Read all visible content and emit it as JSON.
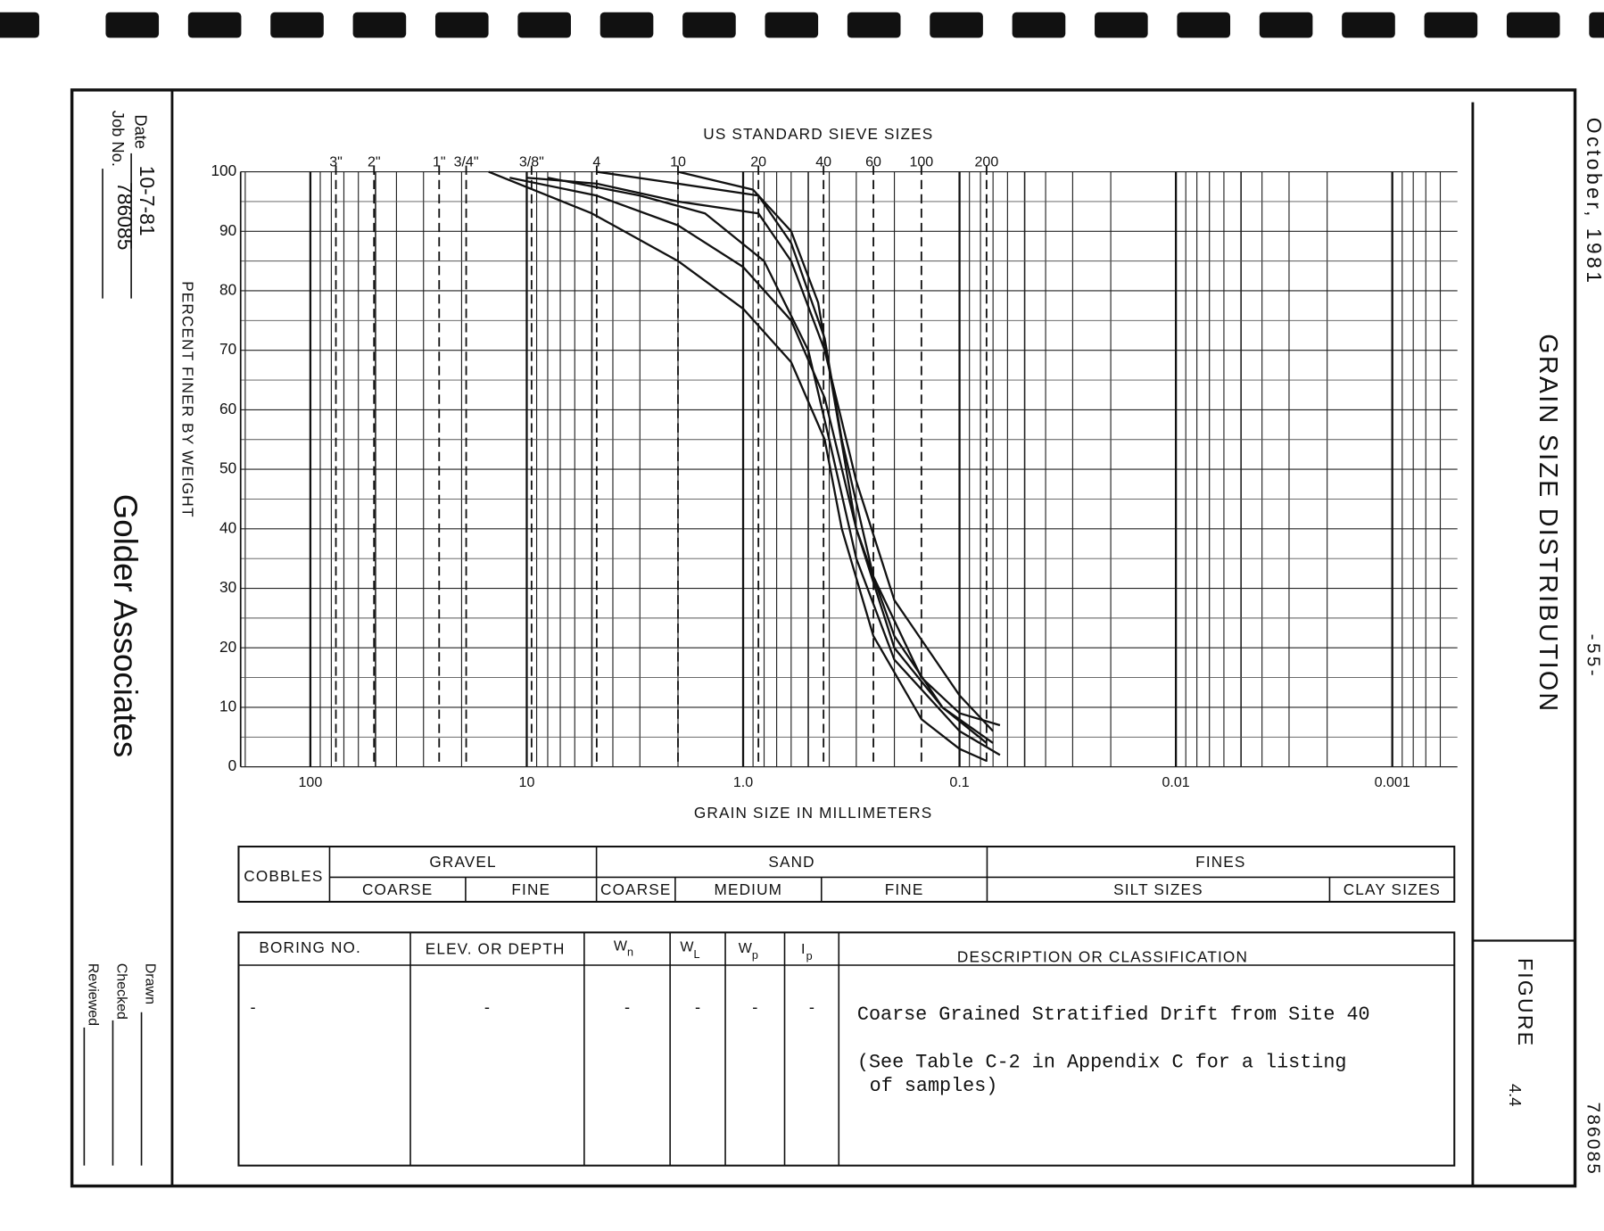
{
  "header": {
    "date_label": "Date",
    "date": "10-7-81",
    "job_label": "Job No.",
    "job": "786085"
  },
  "company": "Golder Associates",
  "signoff": [
    "Drawn",
    "Checked",
    "Reviewed"
  ],
  "side": {
    "date": "October, 1981",
    "title": "GRAIN SIZE DISTRIBUTION",
    "page": "-55-",
    "figure_label": "FIGURE",
    "figure": "4.4",
    "job": "786085"
  },
  "chart_data": {
    "type": "line",
    "top_title": "US  STANDARD  SIEVE  SIZES",
    "x_label": "GRAIN  SIZE  IN  MILLIMETERS",
    "y_label": "PERCENT  FINER  BY  WEIGHT",
    "x_scale": "log",
    "x_reversed": true,
    "xlim": [
      210,
      0.0005
    ],
    "xticks": [
      100,
      10,
      {
        "value": 1,
        "label": "1.0"
      },
      0.1,
      0.01,
      0.001
    ],
    "ylim": [
      0,
      100
    ],
    "yticks": [
      0,
      10,
      20,
      30,
      40,
      50,
      60,
      70,
      80,
      90,
      100
    ],
    "grid": true,
    "minor_grid": true,
    "sieves": [
      {
        "label": "3\"",
        "value": 76.2
      },
      {
        "label": "2\"",
        "value": 50.8
      },
      {
        "label": "1\"",
        "value": 25.4
      },
      {
        "label": "3/4\"",
        "value": 19.05
      },
      {
        "label": "3/8\"",
        "value": 9.5
      },
      {
        "label": "4",
        "value": 4.75
      },
      {
        "label": "10",
        "value": 2.0
      },
      {
        "label": "20",
        "value": 0.85
      },
      {
        "label": "40",
        "value": 0.425
      },
      {
        "label": "60",
        "value": 0.25
      },
      {
        "label": "100",
        "value": 0.15
      },
      {
        "label": "200",
        "value": 0.075
      }
    ],
    "series": [
      {
        "color": "#111111",
        "x": [
          15,
          5,
          2,
          1,
          0.6,
          0.42,
          0.35,
          0.25,
          0.15,
          0.1,
          0.075
        ],
        "values": [
          100,
          93,
          85,
          77,
          68,
          55,
          40,
          22,
          8,
          3,
          1
        ]
      },
      {
        "color": "#111111",
        "x": [
          12,
          4.75,
          2,
          1,
          0.6,
          0.42,
          0.3,
          0.2,
          0.12,
          0.075
        ],
        "values": [
          99,
          96,
          91,
          84,
          75,
          62,
          40,
          22,
          10,
          4
        ]
      },
      {
        "color": "#111111",
        "x": [
          10,
          4.75,
          2,
          0.85,
          0.6,
          0.42,
          0.3,
          0.2,
          0.1,
          0.07
        ],
        "values": [
          99,
          98,
          95,
          93,
          85,
          70,
          48,
          28,
          12,
          6
        ]
      },
      {
        "color": "#111111",
        "x": [
          4.75,
          2,
          0.85,
          0.6,
          0.42,
          0.35,
          0.25,
          0.15,
          0.1,
          0.065
        ],
        "values": [
          100,
          98,
          96,
          88,
          72,
          55,
          32,
          15,
          9,
          7
        ]
      },
      {
        "color": "#111111",
        "x": [
          2,
          0.9,
          0.6,
          0.45,
          0.38,
          0.3,
          0.2,
          0.12,
          0.07
        ],
        "values": [
          100,
          97,
          90,
          78,
          62,
          40,
          20,
          10,
          4
        ]
      },
      {
        "color": "#111111",
        "x": [
          8,
          3,
          1.5,
          0.8,
          0.5,
          0.4,
          0.3,
          0.2,
          0.1,
          0.065
        ],
        "values": [
          99,
          96,
          93,
          85,
          70,
          55,
          35,
          18,
          6,
          2
        ]
      }
    ]
  },
  "classification": {
    "cobbles": "COBBLES",
    "groups": [
      {
        "label": "GRAVEL",
        "parts": [
          "COARSE",
          "FINE"
        ]
      },
      {
        "label": "SAND",
        "parts": [
          "COARSE",
          "MEDIUM",
          "FINE"
        ]
      },
      {
        "label": "FINES",
        "parts": [
          "SILT  SIZES",
          "CLAY SIZES"
        ]
      }
    ]
  },
  "table": {
    "boring": "BORING NO.",
    "elev": "ELEV. OR DEPTH",
    "wn": {
      "main": "W",
      "sub": "n"
    },
    "wl": {
      "main": "W",
      "sub": "L"
    },
    "wp": {
      "main": "W",
      "sub": "p"
    },
    "ip": {
      "main": "I",
      "sub": "p"
    },
    "description": "DESCRIPTION  OR  CLASSIFICATION",
    "row": [
      "-",
      "-",
      "-",
      "-",
      "-",
      "-"
    ],
    "row_description": [
      "Coarse Grained Stratified Drift from Site 40",
      "(See Table C-2 in Appendix C for a listing",
      "of samples)"
    ]
  }
}
